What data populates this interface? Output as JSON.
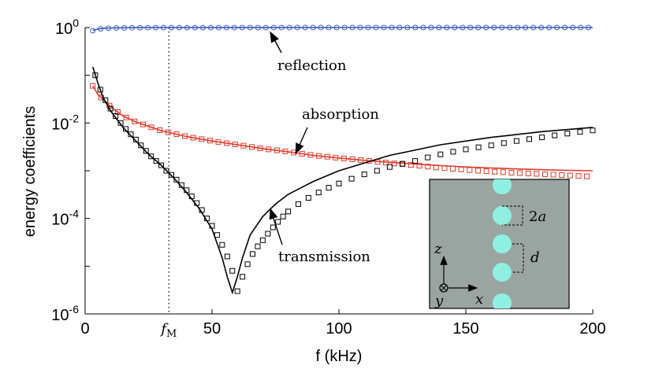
{
  "chart_data": {
    "type": "line",
    "yscale": "log",
    "xlabel": "f (kHz)",
    "ylabel": "energy coefficients",
    "xlim": [
      0,
      200
    ],
    "ylim": [
      1e-06,
      1
    ],
    "x_ticks": [
      {
        "value": 0,
        "label": "0"
      },
      {
        "value": 50,
        "label": "50"
      },
      {
        "value": 100,
        "label": "100"
      },
      {
        "value": 150,
        "label": "150"
      },
      {
        "value": 200,
        "label": "200"
      }
    ],
    "y_ticks": [
      {
        "value": 1,
        "base": "10",
        "exp": "0"
      },
      {
        "value": 0.01,
        "base": "10",
        "exp": "-2"
      },
      {
        "value": 0.0001,
        "base": "10",
        "exp": "-4"
      },
      {
        "value": 1e-06,
        "base": "10",
        "exp": "-6"
      }
    ],
    "marker_line": {
      "x": 33,
      "label_main": "f",
      "label_sub": "M"
    },
    "series": [
      {
        "name": "reflection",
        "color": "#3a5ccc",
        "style": "line",
        "x": [
          3,
          5,
          7,
          10,
          15,
          20,
          30,
          50,
          100,
          150,
          200
        ],
        "y": [
          0.87,
          0.93,
          0.96,
          0.98,
          0.99,
          0.995,
          0.997,
          0.998,
          0.999,
          0.999,
          0.999
        ]
      },
      {
        "name": "reflection (markers)",
        "color": "#3a5ccc",
        "style": "circle",
        "x": [
          3,
          5,
          7,
          10,
          15,
          20,
          30,
          50,
          100,
          150,
          200
        ],
        "y": [
          0.86,
          0.92,
          0.95,
          0.975,
          0.985,
          0.99,
          0.995,
          0.997,
          0.998,
          0.999,
          0.999
        ]
      },
      {
        "name": "absorption",
        "color": "#e03a2a",
        "style": "line",
        "x": [
          3,
          5,
          10,
          15,
          20,
          30,
          40,
          50,
          60,
          70,
          80,
          90,
          100,
          110,
          120,
          130,
          140,
          150,
          160,
          170,
          180,
          190,
          200
        ],
        "y": [
          0.06,
          0.04,
          0.022,
          0.014,
          0.0105,
          0.0069,
          0.0052,
          0.0042,
          0.0035,
          0.0029,
          0.0025,
          0.0021,
          0.00185,
          0.00165,
          0.0015,
          0.00138,
          0.00128,
          0.0012,
          0.00114,
          0.00109,
          0.00105,
          0.00102,
          0.001
        ]
      },
      {
        "name": "absorption (markers)",
        "color": "#e03a2a",
        "style": "square",
        "x": [
          3,
          5,
          10,
          15,
          20,
          30,
          40,
          50,
          60,
          70,
          80,
          90,
          100,
          110,
          120,
          130,
          140,
          150,
          160,
          170,
          180,
          190,
          200
        ],
        "y": [
          0.06,
          0.04,
          0.022,
          0.014,
          0.0105,
          0.0069,
          0.0052,
          0.0042,
          0.0035,
          0.0029,
          0.0025,
          0.0021,
          0.00185,
          0.00165,
          0.00145,
          0.0013,
          0.00115,
          0.00105,
          0.00096,
          0.0009,
          0.00085,
          0.0008,
          0.00075
        ]
      },
      {
        "name": "transmission",
        "color": "#000000",
        "style": "line",
        "x": [
          3,
          5,
          7,
          10,
          15,
          20,
          25,
          30,
          35,
          40,
          45,
          50,
          54,
          56,
          58,
          60,
          62,
          65,
          70,
          75,
          80,
          90,
          100,
          120,
          140,
          160,
          180,
          200
        ],
        "y": [
          0.15,
          0.07,
          0.035,
          0.018,
          0.008,
          0.0042,
          0.0022,
          0.0013,
          0.0007,
          0.00035,
          0.00016,
          6e-05,
          1.5e-05,
          6e-06,
          2.8e-06,
          6e-06,
          1.5e-05,
          4.5e-05,
          0.00011,
          0.0002,
          0.00032,
          0.0006,
          0.001,
          0.0021,
          0.0035,
          0.005,
          0.0066,
          0.0081
        ]
      },
      {
        "name": "transmission (markers)",
        "color": "#000000",
        "style": "square",
        "x": [
          4,
          6,
          8,
          10,
          12,
          14,
          16,
          18,
          20,
          22,
          24,
          26,
          28,
          30,
          32,
          34,
          36,
          38,
          40,
          42,
          44,
          46,
          48,
          50,
          52,
          54,
          56,
          58,
          60,
          62,
          64,
          66,
          68,
          70,
          72,
          74,
          76,
          78,
          80,
          84,
          88,
          92,
          96,
          100,
          105,
          110,
          115,
          120,
          125,
          130,
          135,
          140,
          145,
          150,
          155,
          160,
          165,
          170,
          175,
          180,
          185,
          190,
          195,
          200
        ],
        "y": [
          0.1,
          0.05,
          0.03,
          0.02,
          0.014,
          0.01,
          0.0075,
          0.0058,
          0.0045,
          0.0034,
          0.0026,
          0.002,
          0.0016,
          0.0013,
          0.001,
          0.00082,
          0.00065,
          0.0005,
          0.00039,
          0.00029,
          0.00021,
          0.00015,
          0.0001,
          7e-05,
          4.5e-05,
          2.8e-05,
          1.6e-05,
          8e-06,
          3e-06,
          6e-06,
          1.1e-05,
          1.8e-05,
          2.6e-05,
          3.5e-05,
          4.8e-05,
          6.5e-05,
          8.5e-05,
          0.00011,
          0.00014,
          0.0002,
          0.00027,
          0.00035,
          0.00044,
          0.00054,
          0.00068,
          0.00084,
          0.001,
          0.0012,
          0.0014,
          0.0016,
          0.0019,
          0.0022,
          0.0025,
          0.0028,
          0.0031,
          0.0034,
          0.0038,
          0.0042,
          0.0046,
          0.005,
          0.0055,
          0.006,
          0.0065,
          0.007
        ]
      }
    ],
    "annotations": [
      {
        "text": "reflection",
        "target_x": 73,
        "target_y": 1.0
      },
      {
        "text": "absorption",
        "target_x": 83,
        "target_y": 0.0025
      },
      {
        "text": "transmission",
        "target_x": 73,
        "target_y": 0.00017
      }
    ],
    "inset": {
      "background": "#9aa5a2",
      "scatterer_color": "#8ff0e2",
      "labels": {
        "z": "z",
        "y": "y",
        "x": "x",
        "two_a_num": "2",
        "two_a_var": "a",
        "d": "d"
      }
    }
  }
}
